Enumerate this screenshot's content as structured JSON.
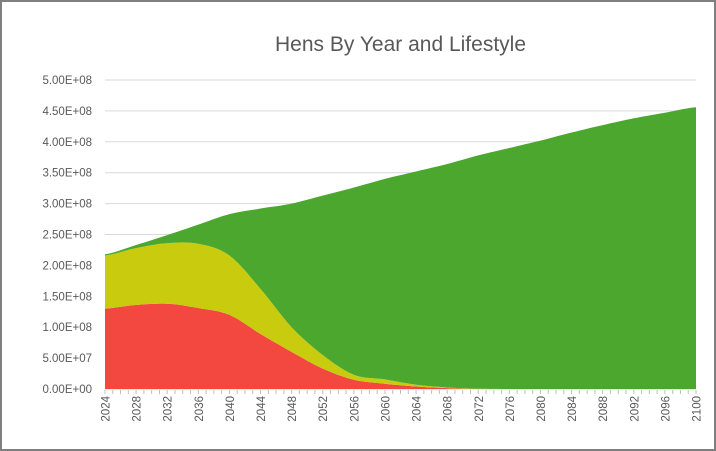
{
  "chart_data": {
    "type": "area",
    "stacked": true,
    "title": "Hens By Year and Lifestyle",
    "xlabel": "",
    "ylabel": "",
    "x": [
      2024,
      2028,
      2032,
      2036,
      2040,
      2044,
      2048,
      2052,
      2056,
      2060,
      2064,
      2068,
      2072,
      2076,
      2080,
      2084,
      2088,
      2092,
      2096,
      2100
    ],
    "series": [
      {
        "name": "red-bottom-series",
        "color": "#f2483f",
        "values": [
          130000000,
          136000000,
          138000000,
          131000000,
          120000000,
          89000000,
          60000000,
          33000000,
          15000000,
          8500000,
          4000000,
          1500000,
          0,
          0,
          0,
          0,
          0,
          0,
          0,
          0
        ]
      },
      {
        "name": "yellow-middle-series",
        "color": "#c9cc0e",
        "values": [
          86000000,
          92000000,
          98000000,
          104000000,
          96000000,
          73000000,
          40000000,
          22000000,
          8000000,
          7000000,
          3000000,
          1000000,
          500000,
          0,
          0,
          0,
          0,
          0,
          0,
          0
        ]
      },
      {
        "name": "green-top-series",
        "color": "#4ca72f",
        "values": [
          2000000,
          5000000,
          13000000,
          31000000,
          67000000,
          130000000,
          200000000,
          258000000,
          303000000,
          324500000,
          345000000,
          361500000,
          377500000,
          390000000,
          402000000,
          415000000,
          427000000,
          438000000,
          447000000,
          456000000
        ]
      }
    ],
    "ylim": [
      0,
      500000000
    ],
    "y_tick_labels": [
      "0.00E+00",
      "5.00E+07",
      "1.00E+08",
      "1.50E+08",
      "2.00E+08",
      "2.50E+08",
      "3.00E+08",
      "3.50E+08",
      "4.00E+08",
      "4.50E+08",
      "5.00E+08"
    ],
    "x_tick_labels": [
      "2024",
      "2028",
      "2032",
      "2036",
      "2040",
      "2044",
      "2048",
      "2052",
      "2056",
      "2060",
      "2064",
      "2068",
      "2072",
      "2076",
      "2080",
      "2084",
      "2088",
      "2092",
      "2096",
      "2100"
    ],
    "grid": true,
    "legend": "none"
  },
  "styles": {
    "background": "#ffffff",
    "border_color": "#7f7f7f",
    "grid_color": "#d9d9d9",
    "axis_line_color": "#d0d0d0",
    "tick_color": "#bfbfbf",
    "axis_label_color": "#595959",
    "title_color": "#595959"
  }
}
